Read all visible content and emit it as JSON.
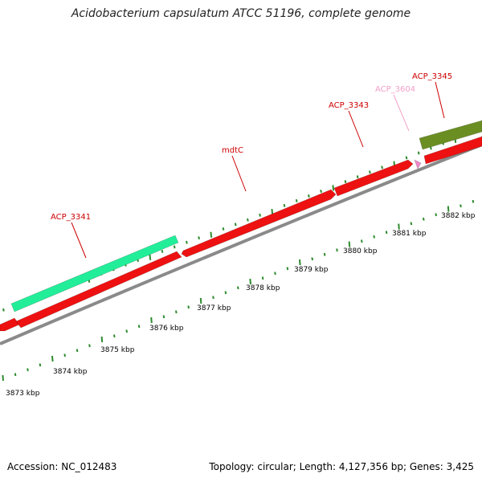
{
  "header": {
    "title": "Acidobacterium capsulatum ATCC 51196, complete genome"
  },
  "footer": {
    "accession": "Accession: NC_012483",
    "summary": "Topology: circular; Length: 4,127,356 bp; Genes: 3,425"
  },
  "colors": {
    "red_gene": "#ee1111",
    "cyan_gene": "#22ee99",
    "olive_gene": "#6b8e23",
    "pink_gene": "#ee88cc",
    "backbone": "#8a8a8a",
    "tick": "#2e8b2e",
    "label_red": "#cc0000",
    "label_pink": "#f0a0c8"
  },
  "scale": {
    "ticks": [
      {
        "label": "3873 kbp"
      },
      {
        "label": "3874 kbp"
      },
      {
        "label": "3875 kbp"
      },
      {
        "label": "3876 kbp"
      },
      {
        "label": "3877 kbp"
      },
      {
        "label": "3878 kbp"
      },
      {
        "label": "3879 kbp"
      },
      {
        "label": "3880 kbp"
      },
      {
        "label": "3881 kbp"
      },
      {
        "label": "3882 kbp"
      }
    ]
  },
  "genes": [
    {
      "name": "ACP_3341",
      "label_color": "label_red"
    },
    {
      "name": "mdtC",
      "label_color": "label_red"
    },
    {
      "name": "ACP_3343",
      "label_color": "label_red"
    },
    {
      "name": "ACP_3604",
      "label_color": "label_pink"
    },
    {
      "name": "ACP_3345",
      "label_color": "label_red"
    }
  ]
}
